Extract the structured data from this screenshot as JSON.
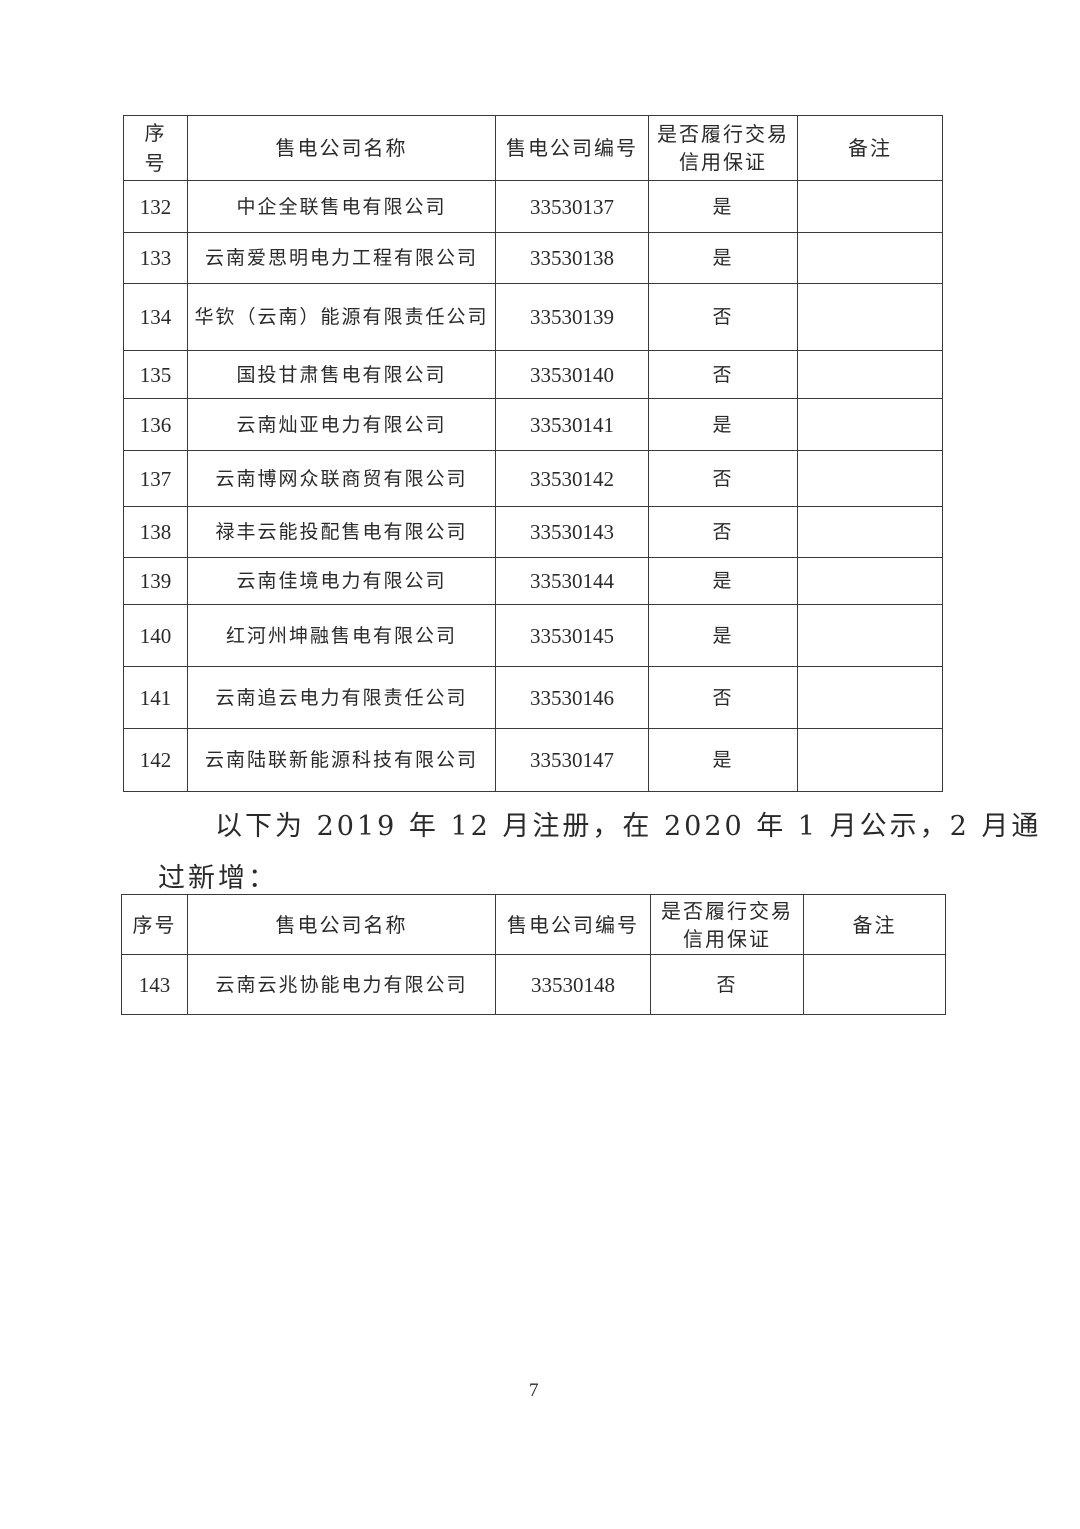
{
  "table1": {
    "headers": [
      "序号",
      "售电公司名称",
      "售电公司编号",
      "是否履行交易信用保证",
      "备注"
    ],
    "rows": [
      {
        "no": "132",
        "name": "中企全联售电有限公司",
        "code": "33530137",
        "guarantee": "是",
        "note": ""
      },
      {
        "no": "133",
        "name": "云南爱思明电力工程有限公司",
        "code": "33530138",
        "guarantee": "是",
        "note": ""
      },
      {
        "no": "134",
        "name": "华钦（云南）能源有限责任公司",
        "code": "33530139",
        "guarantee": "否",
        "note": ""
      },
      {
        "no": "135",
        "name": "国投甘肃售电有限公司",
        "code": "33530140",
        "guarantee": "否",
        "note": ""
      },
      {
        "no": "136",
        "name": "云南灿亚电力有限公司",
        "code": "33530141",
        "guarantee": "是",
        "note": ""
      },
      {
        "no": "137",
        "name": "云南博网众联商贸有限公司",
        "code": "33530142",
        "guarantee": "否",
        "note": ""
      },
      {
        "no": "138",
        "name": "禄丰云能投配售电有限公司",
        "code": "33530143",
        "guarantee": "否",
        "note": ""
      },
      {
        "no": "139",
        "name": "云南佳境电力有限公司",
        "code": "33530144",
        "guarantee": "是",
        "note": ""
      },
      {
        "no": "140",
        "name": "红河州坤融售电有限公司",
        "code": "33530145",
        "guarantee": "是",
        "note": ""
      },
      {
        "no": "141",
        "name": "云南追云电力有限责任公司",
        "code": "33530146",
        "guarantee": "否",
        "note": ""
      },
      {
        "no": "142",
        "name": "云南陆联新能源科技有限公司",
        "code": "33530147",
        "guarantee": "是",
        "note": ""
      }
    ]
  },
  "paragraph": {
    "line1": "以下为 2019 年 12 月注册，在 2020 年 1 月公示，2 月通",
    "line2": "过新增："
  },
  "table2": {
    "headers": [
      "序号",
      "售电公司名称",
      "售电公司编号",
      "是否履行交易信用保证",
      "备注"
    ],
    "rows": [
      {
        "no": "143",
        "name": "云南云兆协能电力有限公司",
        "code": "33530148",
        "guarantee": "否",
        "note": ""
      }
    ]
  },
  "page_number": "7"
}
